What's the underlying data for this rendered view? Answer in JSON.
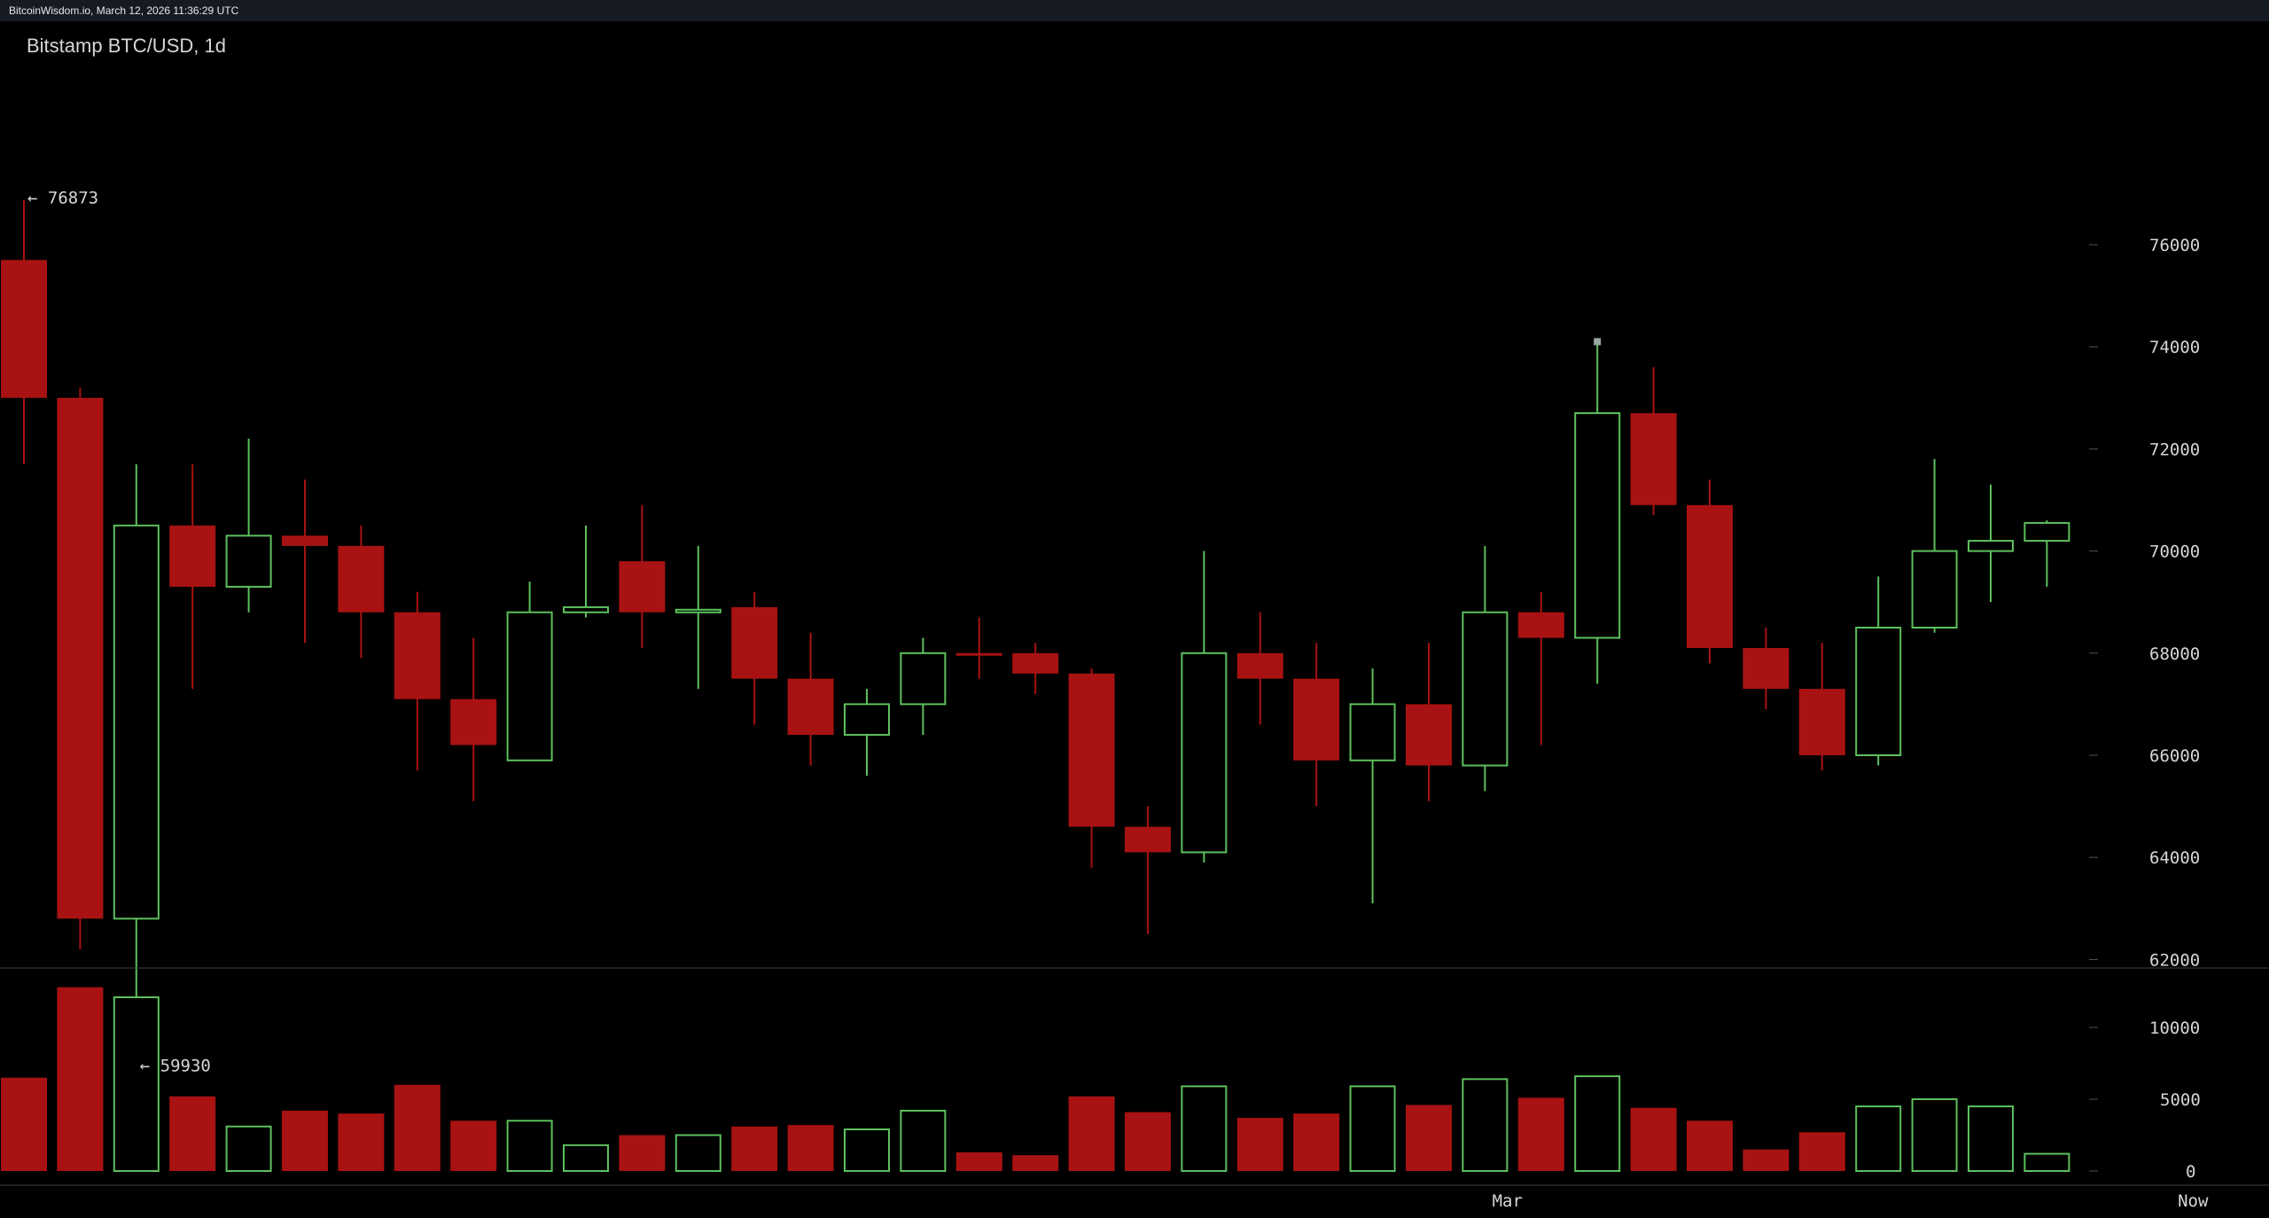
{
  "topbar": {
    "text": "BitcoinWisdom.io, March 12, 2026 11:36:29 UTC"
  },
  "chart_title": "Bitstamp BTC/USD, 1d",
  "markers": {
    "high_label": "← 76873",
    "low_label": "← 59930"
  },
  "colors": {
    "background": "#000000",
    "up": "#5dc05d",
    "down": "#a81212",
    "axis_text": "#d6d6d6",
    "separator": "#3a3f47"
  },
  "chart_data": {
    "type": "candlestick",
    "title": "Bitstamp BTC/USD, 1d",
    "price_axis": {
      "ticks": [
        62000,
        64000,
        66000,
        68000,
        70000,
        72000,
        74000,
        76000
      ]
    },
    "volume_axis": {
      "ticks": [
        0,
        5000,
        10000
      ]
    },
    "x_labels": [
      {
        "label": "Mar",
        "index": 26.4
      },
      {
        "label": "Now",
        "index": 38.6
      }
    ],
    "high_marker": 76873,
    "low_marker": 59930,
    "candles": [
      {
        "o": 75700,
        "h": 76873,
        "l": 71700,
        "c": 73000,
        "v": 6500
      },
      {
        "o": 73000,
        "h": 73200,
        "l": 62200,
        "c": 62800,
        "v": 12800
      },
      {
        "o": 62800,
        "h": 71700,
        "l": 59930,
        "c": 70500,
        "v": 12100
      },
      {
        "o": 70500,
        "h": 71700,
        "l": 67300,
        "c": 69300,
        "v": 5200
      },
      {
        "o": 69300,
        "h": 72200,
        "l": 68800,
        "c": 70300,
        "v": 3100
      },
      {
        "o": 70300,
        "h": 71400,
        "l": 68200,
        "c": 70100,
        "v": 4200
      },
      {
        "o": 70100,
        "h": 70500,
        "l": 67900,
        "c": 68800,
        "v": 4000
      },
      {
        "o": 68800,
        "h": 69200,
        "l": 65700,
        "c": 67100,
        "v": 6000
      },
      {
        "o": 67100,
        "h": 68300,
        "l": 65100,
        "c": 66200,
        "v": 3500
      },
      {
        "o": 65900,
        "h": 69400,
        "l": 65900,
        "c": 68800,
        "v": 3500
      },
      {
        "o": 68800,
        "h": 70500,
        "l": 68700,
        "c": 68900,
        "v": 1800
      },
      {
        "o": 69800,
        "h": 70900,
        "l": 68100,
        "c": 68800,
        "v": 2500
      },
      {
        "o": 68800,
        "h": 70100,
        "l": 67300,
        "c": 68850,
        "v": 2500
      },
      {
        "o": 68900,
        "h": 69200,
        "l": 66600,
        "c": 67500,
        "v": 3100
      },
      {
        "o": 67500,
        "h": 68400,
        "l": 65800,
        "c": 66400,
        "v": 3200
      },
      {
        "o": 66400,
        "h": 67300,
        "l": 65600,
        "c": 67000,
        "v": 2900
      },
      {
        "o": 67000,
        "h": 68300,
        "l": 66400,
        "c": 68000,
        "v": 4200
      },
      {
        "o": 68000,
        "h": 68700,
        "l": 67500,
        "c": 67950,
        "v": 1300
      },
      {
        "o": 68000,
        "h": 68200,
        "l": 67200,
        "c": 67600,
        "v": 1100
      },
      {
        "o": 67600,
        "h": 67700,
        "l": 63800,
        "c": 64600,
        "v": 5200
      },
      {
        "o": 64600,
        "h": 65000,
        "l": 62500,
        "c": 64100,
        "v": 4100
      },
      {
        "o": 64100,
        "h": 70000,
        "l": 63900,
        "c": 68000,
        "v": 5900
      },
      {
        "o": 68000,
        "h": 68800,
        "l": 66600,
        "c": 67500,
        "v": 3700
      },
      {
        "o": 67500,
        "h": 68200,
        "l": 65000,
        "c": 65900,
        "v": 4000
      },
      {
        "o": 65900,
        "h": 67700,
        "l": 63100,
        "c": 67000,
        "v": 5900
      },
      {
        "o": 67000,
        "h": 68200,
        "l": 65100,
        "c": 65800,
        "v": 4600
      },
      {
        "o": 65800,
        "h": 70100,
        "l": 65300,
        "c": 68800,
        "v": 6400
      },
      {
        "o": 68800,
        "h": 69200,
        "l": 66200,
        "c": 68300,
        "v": 5100
      },
      {
        "o": 68300,
        "h": 74100,
        "l": 67400,
        "c": 72700,
        "v": 6600
      },
      {
        "o": 72700,
        "h": 73600,
        "l": 70700,
        "c": 70900,
        "v": 4400
      },
      {
        "o": 70900,
        "h": 71400,
        "l": 67800,
        "c": 68100,
        "v": 3500
      },
      {
        "o": 68100,
        "h": 68500,
        "l": 66900,
        "c": 67300,
        "v": 1500
      },
      {
        "o": 67300,
        "h": 68200,
        "l": 65700,
        "c": 66000,
        "v": 2700
      },
      {
        "o": 66000,
        "h": 69500,
        "l": 65800,
        "c": 68500,
        "v": 4500
      },
      {
        "o": 68500,
        "h": 71800,
        "l": 68400,
        "c": 70000,
        "v": 5000
      },
      {
        "o": 70000,
        "h": 71300,
        "l": 69000,
        "c": 70200,
        "v": 4500
      },
      {
        "o": 70200,
        "h": 70600,
        "l": 69300,
        "c": 70550,
        "v": 1200
      }
    ]
  }
}
